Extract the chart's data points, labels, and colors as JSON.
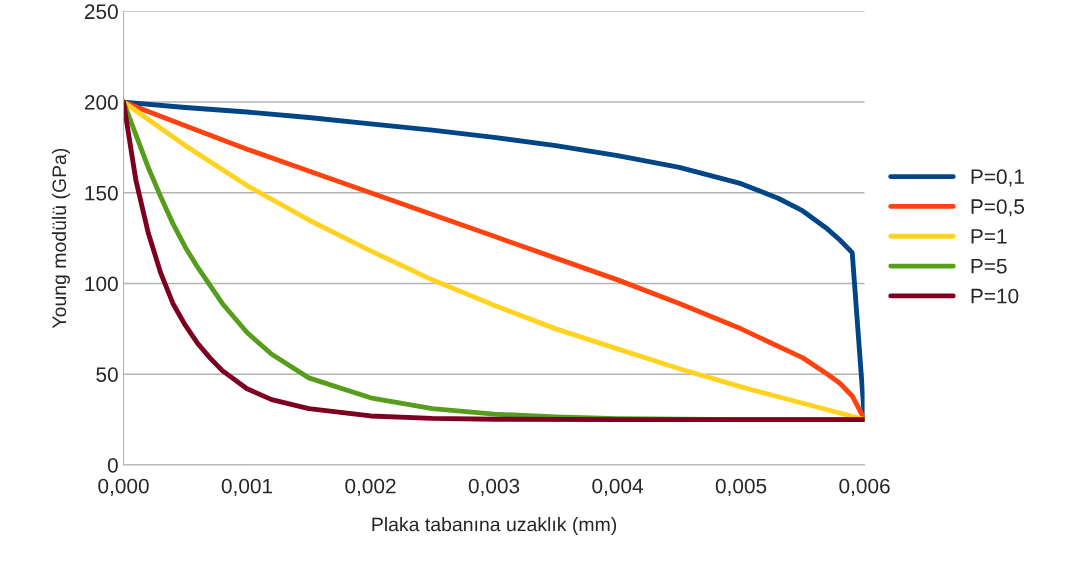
{
  "chart_data": {
    "type": "line",
    "xlabel": "Plaka tabanına uzaklık (mm)",
    "ylabel": "Young modülü (GPa)",
    "xlim": [
      0,
      0.006
    ],
    "ylim": [
      0,
      250
    ],
    "xticks": [
      {
        "value": 0,
        "label": "0,000"
      },
      {
        "value": 0.001,
        "label": "0,001"
      },
      {
        "value": 0.002,
        "label": "0,002"
      },
      {
        "value": 0.003,
        "label": "0,003"
      },
      {
        "value": 0.004,
        "label": "0,004"
      },
      {
        "value": 0.005,
        "label": "0,005"
      },
      {
        "value": 0.006,
        "label": "0,006"
      }
    ],
    "yticks": [
      0,
      50,
      100,
      150,
      200,
      250
    ],
    "grid": "y",
    "legend": "right",
    "marker": "none",
    "line_style": "solid",
    "series": [
      {
        "name": "P=0,1",
        "color": "#004586",
        "x": [
          0,
          0.0005,
          0.001,
          0.0015,
          0.002,
          0.0025,
          0.003,
          0.0035,
          0.004,
          0.0045,
          0.005,
          0.0053,
          0.0055,
          0.0057,
          0.0058,
          0.0059,
          0.006
        ],
        "values": [
          200,
          197,
          194.5,
          191.5,
          188,
          184.5,
          180.5,
          176,
          170.5,
          164,
          155,
          147,
          140,
          130,
          124,
          117,
          25
        ]
      },
      {
        "name": "P=0,5",
        "color": "#ff420e",
        "x": [
          0,
          0.0005,
          0.001,
          0.0015,
          0.002,
          0.0025,
          0.003,
          0.0035,
          0.004,
          0.0045,
          0.005,
          0.0055,
          0.0057,
          0.0058,
          0.0059,
          0.006
        ],
        "values": [
          200,
          187,
          174,
          162,
          150,
          138,
          126,
          114,
          102,
          89,
          75,
          59,
          50,
          45,
          38,
          25
        ]
      },
      {
        "name": "P=1",
        "color": "#ffd320",
        "x": [
          0,
          0.0005,
          0.001,
          0.0015,
          0.002,
          0.0025,
          0.003,
          0.0035,
          0.004,
          0.0045,
          0.005,
          0.0055,
          0.006
        ],
        "values": [
          200,
          176,
          154,
          135,
          118,
          102,
          88,
          75,
          64,
          53,
          43,
          34,
          25
        ]
      },
      {
        "name": "P=5",
        "color": "#579d1c",
        "x": [
          0,
          0.0001,
          0.0002,
          0.0003,
          0.0004,
          0.0005,
          0.0006,
          0.0008,
          0.001,
          0.0012,
          0.0015,
          0.002,
          0.0025,
          0.003,
          0.0035,
          0.004,
          0.005,
          0.006
        ],
        "values": [
          200,
          182,
          164,
          148,
          133,
          120,
          109,
          89,
          73,
          61,
          48,
          37,
          31,
          28,
          26.5,
          25.5,
          25,
          25
        ]
      },
      {
        "name": "P=10",
        "color": "#7e0021",
        "x": [
          0,
          0.0001,
          0.0002,
          0.0003,
          0.0004,
          0.0005,
          0.0006,
          0.0007,
          0.0008,
          0.001,
          0.0012,
          0.0015,
          0.002,
          0.0025,
          0.003,
          0.004,
          0.006
        ],
        "values": [
          200,
          157,
          128,
          106,
          89,
          77,
          67,
          59,
          52,
          42,
          36,
          31,
          27,
          25.7,
          25.2,
          25,
          25
        ]
      }
    ]
  }
}
